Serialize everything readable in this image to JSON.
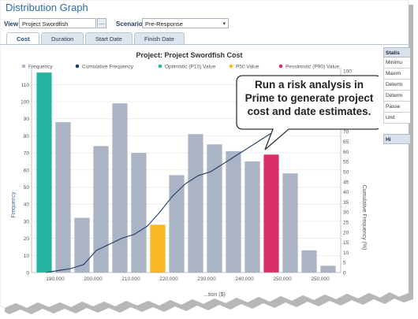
{
  "app_title": "Distribution Graph",
  "toolbar": {
    "view_label": "View",
    "view_value": "Project Swordfish",
    "more_label": "...",
    "scenario_label": "Scenario",
    "scenario_value": "Pre-Response"
  },
  "tabs": [
    {
      "label": "Cost",
      "active": true
    },
    {
      "label": "Duration",
      "active": false
    },
    {
      "label": "Start Date",
      "active": false
    },
    {
      "label": "Finish Date",
      "active": false
    }
  ],
  "stats_panel": {
    "header": "Statis",
    "rows": [
      "Minimu",
      "Maxim",
      "Determ",
      "Determ",
      "Passe",
      "Unit"
    ],
    "header2": "Hi"
  },
  "callout": {
    "line1": "Run a risk analysis in",
    "line2": "Prime to generate project",
    "line3": "cost and date estimates."
  },
  "colors": {
    "frequency": "#aab4c4",
    "cumulative": "#1b3a66",
    "p10": "#23b5a0",
    "p50": "#fbb827",
    "p90": "#d9306c"
  },
  "chart_data": {
    "type": "bar",
    "title": "Project: Project Swordfish Cost",
    "ylabel": "Frequency",
    "y2label": "Cumulative Frequency (%)",
    "xlabel": "...tion ($)",
    "ylim": [
      0,
      118
    ],
    "y2lim": [
      0,
      100
    ],
    "y_ticks": [
      0,
      10,
      20,
      30,
      40,
      50,
      60,
      70,
      80,
      90,
      100,
      110
    ],
    "y2_ticks": [
      0,
      5,
      10,
      15,
      20,
      25,
      30,
      35,
      40,
      45,
      50,
      55,
      60,
      65,
      70,
      75,
      80,
      85,
      90,
      95,
      100
    ],
    "x_tick_labels": [
      "190,000",
      "200,000",
      "210,000",
      "220,000",
      "230,000",
      "240,000",
      "250,000",
      "250,000"
    ],
    "legend": [
      {
        "name": "Frequency",
        "color": "#aab4c4"
      },
      {
        "name": "Cumulative Frequency",
        "color": "#1b3a66"
      },
      {
        "name": "Optimistic (P10) Value",
        "color": "#23b5a0"
      },
      {
        "name": "P50 Value",
        "color": "#fbb827"
      },
      {
        "name": "Pessimistic (P90) Value",
        "color": "#d9306c"
      }
    ],
    "legend_position": "top",
    "grid": true,
    "bars": [
      {
        "value": 117,
        "kind": "p10"
      },
      {
        "value": 88,
        "kind": "frequency"
      },
      {
        "value": 32,
        "kind": "frequency"
      },
      {
        "value": 74,
        "kind": "frequency"
      },
      {
        "value": 99,
        "kind": "frequency"
      },
      {
        "value": 70,
        "kind": "frequency"
      },
      {
        "value": 28,
        "kind": "p50"
      },
      {
        "value": 57,
        "kind": "frequency"
      },
      {
        "value": 81,
        "kind": "frequency"
      },
      {
        "value": 75,
        "kind": "frequency"
      },
      {
        "value": 71,
        "kind": "frequency"
      },
      {
        "value": 65,
        "kind": "frequency"
      },
      {
        "value": 69,
        "kind": "p90"
      },
      {
        "value": 58,
        "kind": "frequency"
      },
      {
        "value": 13,
        "kind": "frequency"
      },
      {
        "value": 4,
        "kind": "frequency"
      }
    ],
    "cumulative": [
      0,
      1,
      2,
      4,
      11,
      14,
      17,
      19,
      23,
      30,
      38,
      44,
      48,
      50,
      54,
      58,
      62,
      66,
      70,
      74,
      78,
      84,
      90,
      96
    ]
  }
}
